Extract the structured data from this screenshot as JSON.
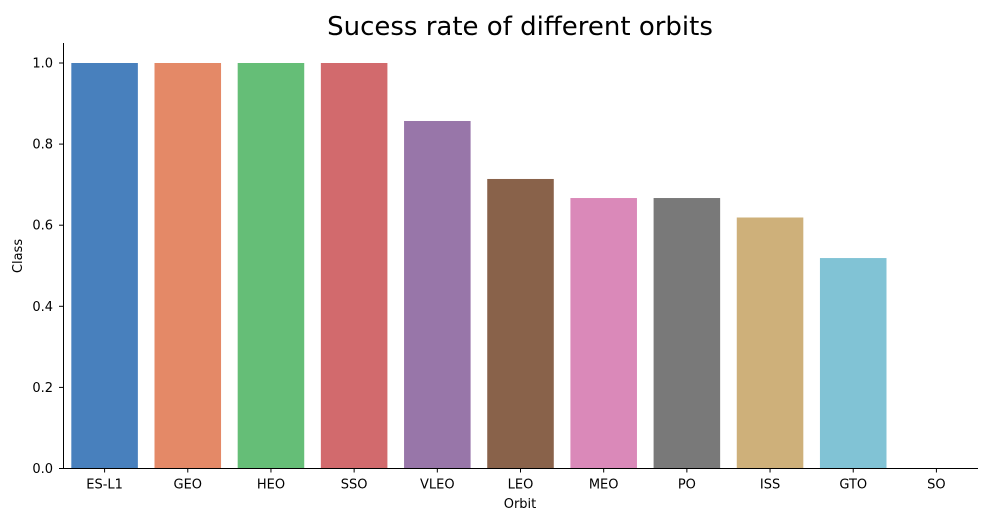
{
  "chart_data": {
    "type": "bar",
    "title": "Sucess rate of different orbits",
    "xlabel": "Orbit",
    "ylabel": "Class",
    "categories": [
      "ES-L1",
      "GEO",
      "HEO",
      "SSO",
      "VLEO",
      "LEO",
      "MEO",
      "PO",
      "ISS",
      "GTO",
      "SO"
    ],
    "values": [
      1.0,
      1.0,
      1.0,
      1.0,
      0.857,
      0.714,
      0.667,
      0.667,
      0.619,
      0.519,
      0.0
    ],
    "colors": [
      "#4880bd",
      "#e48967",
      "#65be77",
      "#d26a6d",
      "#9876a9",
      "#89624a",
      "#da89b9",
      "#797979",
      "#ceb07a",
      "#81c3d5",
      "#81c3d5"
    ],
    "ylim": [
      0,
      1.05
    ],
    "yticks": [
      "0.0",
      "0.2",
      "0.4",
      "0.6",
      "0.8",
      "1.0"
    ],
    "grid": false
  }
}
